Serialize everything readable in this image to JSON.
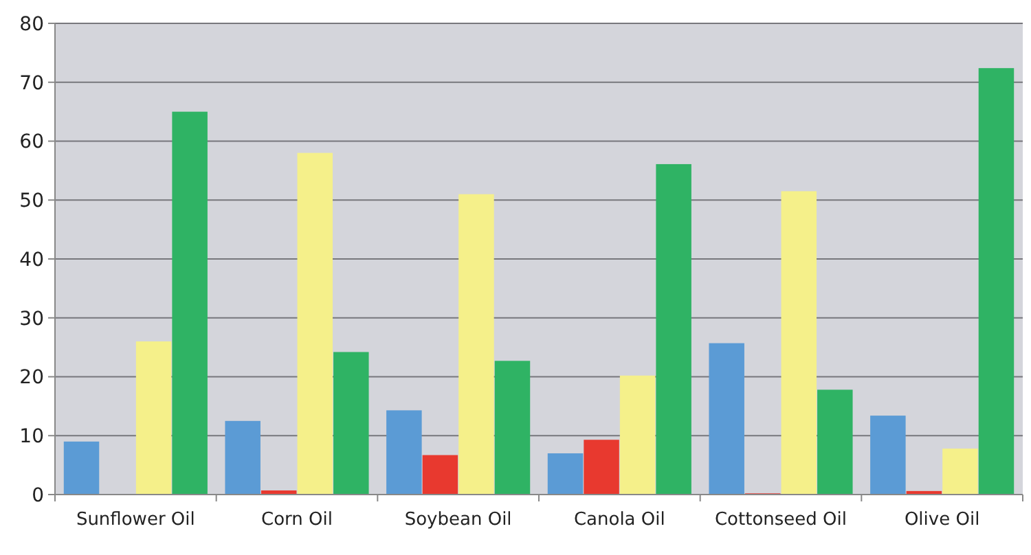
{
  "chart_data": {
    "type": "bar",
    "categories": [
      "Sunflower Oil",
      "Corn Oil",
      "Soybean Oil",
      "Canola Oil",
      "Cottonseed Oil",
      "Olive Oil"
    ],
    "series": [
      {
        "color": "#5b9bd5",
        "values": [
          9,
          12.5,
          14.3,
          7,
          25.7,
          13.4
        ]
      },
      {
        "color": "#e8392f",
        "values": [
          0,
          0.7,
          6.7,
          9.3,
          0.2,
          0.6
        ]
      },
      {
        "color": "#f5f08a",
        "values": [
          26,
          58,
          51,
          20.2,
          51.5,
          7.8
        ]
      },
      {
        "color": "#2fb364",
        "values": [
          65,
          24.2,
          22.7,
          56.1,
          17.8,
          72.4
        ]
      }
    ],
    "ylim": [
      0,
      80
    ],
    "yticks": [
      0,
      10,
      20,
      30,
      40,
      50,
      60,
      70,
      80
    ],
    "grid": "y"
  }
}
